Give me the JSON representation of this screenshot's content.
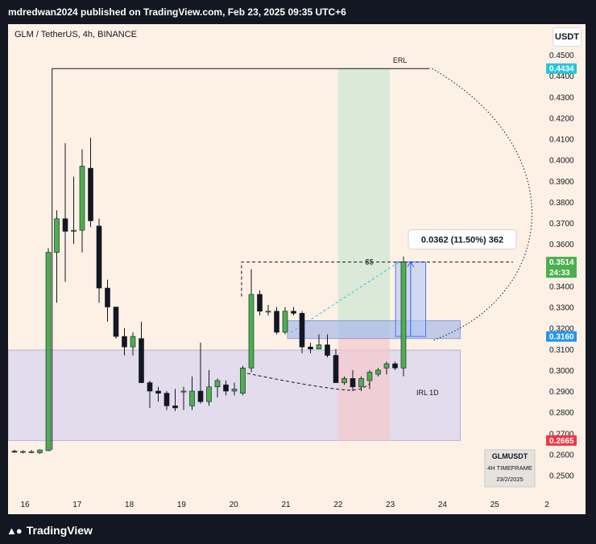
{
  "header": {
    "publisher_line": "mdredwan2024 published on TradingView.com, Feb 23, 2025 09:35 UTC+6"
  },
  "chart_header": {
    "symbol": "GLM / TetherUS, 4h, BINANCE",
    "currency": "USDT"
  },
  "chart_data": {
    "type": "candlestick",
    "symbol": "GLM / TetherUS",
    "timeframe": "4h",
    "exchange": "BINANCE",
    "xlabel": "",
    "ylabel": "",
    "ylim": [
      0.2388,
      0.4585
    ],
    "x_ticks": [
      "16",
      "17",
      "18",
      "19",
      "20",
      "21",
      "22",
      "23",
      "24",
      "25",
      "2"
    ],
    "y_ticks": [
      "0.4500",
      "0.4400",
      "0.4300",
      "0.4200",
      "0.4100",
      "0.4000",
      "0.3900",
      "0.3800",
      "0.3700",
      "0.3600",
      "0.3500",
      "0.3400",
      "0.3300",
      "0.3200",
      "0.3100",
      "0.3000",
      "0.2900",
      "0.2800",
      "0.2700",
      "0.2600",
      "0.2500"
    ],
    "grid": false,
    "candles": [
      {
        "o": 0.2614,
        "h": 0.2621,
        "l": 0.2607,
        "c": 0.2612
      },
      {
        "o": 0.261,
        "h": 0.2618,
        "l": 0.2604,
        "c": 0.2613
      },
      {
        "o": 0.261,
        "h": 0.262,
        "l": 0.2605,
        "c": 0.2612
      },
      {
        "o": 0.2607,
        "h": 0.2623,
        "l": 0.2601,
        "c": 0.262
      },
      {
        "o": 0.2617,
        "h": 0.358,
        "l": 0.2614,
        "c": 0.356
      },
      {
        "o": 0.356,
        "h": 0.376,
        "l": 0.332,
        "c": 0.372
      },
      {
        "o": 0.372,
        "h": 0.408,
        "l": 0.342,
        "c": 0.366
      },
      {
        "o": 0.366,
        "h": 0.392,
        "l": 0.36,
        "c": 0.3665
      },
      {
        "o": 0.3665,
        "h": 0.405,
        "l": 0.356,
        "c": 0.397
      },
      {
        "o": 0.396,
        "h": 0.4105,
        "l": 0.368,
        "c": 0.371
      },
      {
        "o": 0.3685,
        "h": 0.372,
        "l": 0.332,
        "c": 0.339
      },
      {
        "o": 0.339,
        "h": 0.343,
        "l": 0.323,
        "c": 0.33
      },
      {
        "o": 0.33,
        "h": 0.33,
        "l": 0.315,
        "c": 0.316
      },
      {
        "o": 0.316,
        "h": 0.32,
        "l": 0.307,
        "c": 0.311
      },
      {
        "o": 0.311,
        "h": 0.318,
        "l": 0.307,
        "c": 0.316
      },
      {
        "o": 0.315,
        "h": 0.323,
        "l": 0.296,
        "c": 0.294
      },
      {
        "o": 0.294,
        "h": 0.295,
        "l": 0.282,
        "c": 0.29
      },
      {
        "o": 0.29,
        "h": 0.292,
        "l": 0.285,
        "c": 0.289
      },
      {
        "o": 0.289,
        "h": 0.29,
        "l": 0.281,
        "c": 0.283
      },
      {
        "o": 0.283,
        "h": 0.291,
        "l": 0.2805,
        "c": 0.282
      },
      {
        "o": 0.29,
        "h": 0.292,
        "l": 0.281,
        "c": 0.29
      },
      {
        "o": 0.283,
        "h": 0.297,
        "l": 0.281,
        "c": 0.29
      },
      {
        "o": 0.29,
        "h": 0.313,
        "l": 0.284,
        "c": 0.285
      },
      {
        "o": 0.285,
        "h": 0.3,
        "l": 0.283,
        "c": 0.292
      },
      {
        "o": 0.292,
        "h": 0.296,
        "l": 0.287,
        "c": 0.295
      },
      {
        "o": 0.293,
        "h": 0.295,
        "l": 0.288,
        "c": 0.29
      },
      {
        "o": 0.29,
        "h": 0.294,
        "l": 0.288,
        "c": 0.291
      },
      {
        "o": 0.289,
        "h": 0.302,
        "l": 0.288,
        "c": 0.301
      },
      {
        "o": 0.301,
        "h": 0.348,
        "l": 0.299,
        "c": 0.336
      },
      {
        "o": 0.336,
        "h": 0.338,
        "l": 0.326,
        "c": 0.328
      },
      {
        "o": 0.328,
        "h": 0.331,
        "l": 0.326,
        "c": 0.328
      },
      {
        "o": 0.328,
        "h": 0.33,
        "l": 0.317,
        "c": 0.318
      },
      {
        "o": 0.318,
        "h": 0.33,
        "l": 0.317,
        "c": 0.328
      },
      {
        "o": 0.328,
        "h": 0.33,
        "l": 0.326,
        "c": 0.327
      },
      {
        "o": 0.327,
        "h": 0.328,
        "l": 0.308,
        "c": 0.311
      },
      {
        "o": 0.311,
        "h": 0.313,
        "l": 0.308,
        "c": 0.31
      },
      {
        "o": 0.31,
        "h": 0.317,
        "l": 0.31,
        "c": 0.312
      },
      {
        "o": 0.312,
        "h": 0.317,
        "l": 0.306,
        "c": 0.307
      },
      {
        "o": 0.307,
        "h": 0.31,
        "l": 0.294,
        "c": 0.294
      },
      {
        "o": 0.294,
        "h": 0.297,
        "l": 0.293,
        "c": 0.296
      },
      {
        "o": 0.296,
        "h": 0.3,
        "l": 0.29,
        "c": 0.292
      },
      {
        "o": 0.292,
        "h": 0.297,
        "l": 0.29,
        "c": 0.296
      },
      {
        "o": 0.295,
        "h": 0.3,
        "l": 0.291,
        "c": 0.299
      },
      {
        "o": 0.298,
        "h": 0.301,
        "l": 0.297,
        "c": 0.3
      },
      {
        "o": 0.301,
        "h": 0.304,
        "l": 0.298,
        "c": 0.303
      },
      {
        "o": 0.303,
        "h": 0.304,
        "l": 0.3,
        "c": 0.301
      },
      {
        "o": 0.301,
        "h": 0.354,
        "l": 0.297,
        "c": 0.3514
      }
    ],
    "price_labels": [
      {
        "text": "0.4434",
        "value": 0.4434,
        "color": "#26c6da"
      },
      {
        "text": "0.3514",
        "sub": "24:33",
        "value": 0.3514,
        "color": "#4caf50"
      },
      {
        "text": "0.3160",
        "value": 0.316,
        "color": "#2196f3"
      },
      {
        "text": "0.2665",
        "value": 0.2665,
        "color": "#f23645"
      }
    ],
    "annotations": {
      "erl": "ERL",
      "liquidity": "$$",
      "irl": "IRL 1D",
      "measure": "0.0362 (11.50%) 362",
      "pair_box": [
        "GLMUSDT",
        "4H TIMEFRAME",
        "23/2/2025"
      ]
    },
    "colors": {
      "up": "#4caf50",
      "down": "#131722",
      "background": "#fdf1e6"
    }
  },
  "footer": {
    "brand": "TradingView"
  }
}
